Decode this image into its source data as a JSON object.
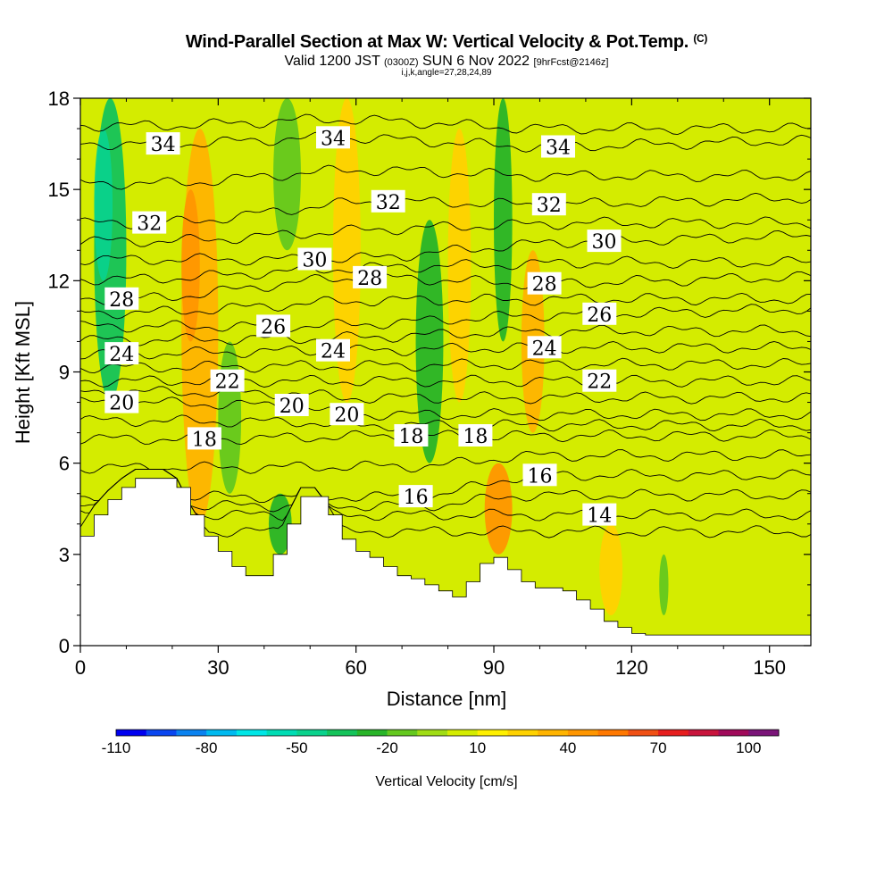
{
  "header": {
    "title": "Wind-Parallel Section at Max W: Vertical Velocity & Pot.Temp.",
    "copyright": "(C)",
    "valid_prefix": "Valid 1200 JST",
    "valid_utc": "(0300Z)",
    "valid_date": "SUN 6 Nov 2022",
    "forecast": "[9hrFcst@2146z]",
    "params": "i,j,k,angle=27,28,24,89"
  },
  "chart_data": {
    "type": "heatmap",
    "xlabel": "Distance [nm]",
    "ylabel": "Height [Kft MSL]",
    "xlim": [
      0,
      159
    ],
    "ylim": [
      0,
      18
    ],
    "x_ticks": [
      0,
      30,
      60,
      90,
      120,
      150
    ],
    "y_ticks": [
      0,
      3,
      6,
      9,
      12,
      15,
      18
    ],
    "grid": false,
    "terrain": {
      "x": [
        0,
        3,
        6,
        9,
        12,
        15,
        18,
        21,
        24,
        27,
        30,
        33,
        36,
        39,
        42,
        45,
        48,
        51,
        54,
        57,
        60,
        63,
        66,
        69,
        72,
        75,
        78,
        81,
        84,
        87,
        90,
        93,
        96,
        99,
        102,
        105,
        108,
        111,
        114,
        117,
        120,
        123,
        126,
        129,
        132,
        135,
        138,
        141,
        144,
        147,
        150,
        153,
        156,
        159
      ],
      "y": [
        3.6,
        4.3,
        4.8,
        5.2,
        5.5,
        5.5,
        5.5,
        5.2,
        4.3,
        3.6,
        3.1,
        2.6,
        2.3,
        2.3,
        3.0,
        4.0,
        4.9,
        4.9,
        4.3,
        3.5,
        3.1,
        2.9,
        2.6,
        2.3,
        2.2,
        2.0,
        1.8,
        1.6,
        2.1,
        2.7,
        2.9,
        2.5,
        2.1,
        1.9,
        1.9,
        1.8,
        1.5,
        1.2,
        0.8,
        0.6,
        0.4,
        0.35,
        0.35,
        0.35,
        0.35,
        0.35,
        0.35,
        0.35,
        0.35,
        0.35,
        0.35,
        0.35,
        0.35,
        0.35
      ]
    },
    "vertical_velocity_field": {
      "units": "cm/s",
      "background": 0,
      "bands": [
        {
          "x": 3,
          "w": 7,
          "y0": 8,
          "y1": 18,
          "value": -40
        },
        {
          "x": 3,
          "w": 4,
          "y0": 12,
          "y1": 17,
          "value": -50
        },
        {
          "x": 22,
          "w": 8,
          "y0": 4,
          "y1": 17,
          "value": 30
        },
        {
          "x": 22,
          "w": 4,
          "y0": 10,
          "y1": 15,
          "value": 40
        },
        {
          "x": 30,
          "w": 5,
          "y0": 5,
          "y1": 10,
          "value": -20
        },
        {
          "x": 41,
          "w": 5,
          "y0": 3,
          "y1": 5,
          "value": -30
        },
        {
          "x": 42,
          "w": 6,
          "y0": 13,
          "y1": 18,
          "value": -20
        },
        {
          "x": 55,
          "w": 6,
          "y0": 8,
          "y1": 18,
          "value": 20
        },
        {
          "x": 73,
          "w": 6,
          "y0": 6,
          "y1": 14,
          "value": -30
        },
        {
          "x": 80,
          "w": 5,
          "y0": 8,
          "y1": 17,
          "value": 20
        },
        {
          "x": 88,
          "w": 6,
          "y0": 3,
          "y1": 6,
          "value": 40
        },
        {
          "x": 90,
          "w": 4,
          "y0": 10,
          "y1": 18,
          "value": -30
        },
        {
          "x": 96,
          "w": 5,
          "y0": 7,
          "y1": 13,
          "value": 30
        },
        {
          "x": 113,
          "w": 5,
          "y0": 1,
          "y1": 4,
          "value": 20
        },
        {
          "x": 126,
          "w": 2,
          "y0": 1,
          "y1": 3,
          "value": -20
        }
      ]
    },
    "theta_contours": {
      "levels": [
        13,
        14,
        15,
        16,
        17,
        18,
        19,
        20,
        21,
        22,
        23,
        24,
        25,
        26,
        27,
        28,
        29,
        30,
        31,
        32,
        33,
        34,
        35
      ],
      "labels": [
        {
          "text": "34",
          "x": 18,
          "y": 16.5
        },
        {
          "text": "34",
          "x": 55,
          "y": 16.7
        },
        {
          "text": "34",
          "x": 104,
          "y": 16.4
        },
        {
          "text": "32",
          "x": 15,
          "y": 13.9
        },
        {
          "text": "32",
          "x": 67,
          "y": 14.6
        },
        {
          "text": "32",
          "x": 102,
          "y": 14.5
        },
        {
          "text": "30",
          "x": 51,
          "y": 12.7
        },
        {
          "text": "30",
          "x": 114,
          "y": 13.3
        },
        {
          "text": "28",
          "x": 9,
          "y": 11.4
        },
        {
          "text": "28",
          "x": 63,
          "y": 12.1
        },
        {
          "text": "28",
          "x": 101,
          "y": 11.9
        },
        {
          "text": "26",
          "x": 42,
          "y": 10.5
        },
        {
          "text": "26",
          "x": 113,
          "y": 10.9
        },
        {
          "text": "24",
          "x": 9,
          "y": 9.6
        },
        {
          "text": "24",
          "x": 55,
          "y": 9.7
        },
        {
          "text": "24",
          "x": 101,
          "y": 9.8
        },
        {
          "text": "22",
          "x": 32,
          "y": 8.7
        },
        {
          "text": "22",
          "x": 113,
          "y": 8.7
        },
        {
          "text": "20",
          "x": 9,
          "y": 8.0
        },
        {
          "text": "20",
          "x": 46,
          "y": 7.9
        },
        {
          "text": "20",
          "x": 58,
          "y": 7.6
        },
        {
          "text": "18",
          "x": 27,
          "y": 6.8
        },
        {
          "text": "18",
          "x": 72,
          "y": 6.9
        },
        {
          "text": "18",
          "x": 86,
          "y": 6.9
        },
        {
          "text": "16",
          "x": 73,
          "y": 4.9
        },
        {
          "text": "16",
          "x": 100,
          "y": 5.6
        },
        {
          "text": "14",
          "x": 113,
          "y": 4.3
        }
      ]
    },
    "colorbar": {
      "label": "Vertical Velocity [cm/s]",
      "tick_labels": [
        "-110",
        "-80",
        "-50",
        "-20",
        "10",
        "40",
        "70",
        "100"
      ],
      "levels": [
        -110,
        -100,
        -90,
        -80,
        -70,
        -60,
        -50,
        -40,
        -30,
        -20,
        -10,
        0,
        10,
        20,
        30,
        40,
        50,
        60,
        70,
        80,
        90,
        100,
        110
      ],
      "colors": [
        "#0000f0",
        "#0a46f0",
        "#0a82f0",
        "#00baf0",
        "#00e6e6",
        "#00dcb4",
        "#0ad28c",
        "#14c35a",
        "#28b428",
        "#64c81e",
        "#a0dc14",
        "#d4ec00",
        "#fff000",
        "#ffd200",
        "#ffb400",
        "#ff9600",
        "#ff7800",
        "#f05014",
        "#e61e1e",
        "#c8143c",
        "#a00a5a",
        "#7a1478"
      ]
    }
  }
}
